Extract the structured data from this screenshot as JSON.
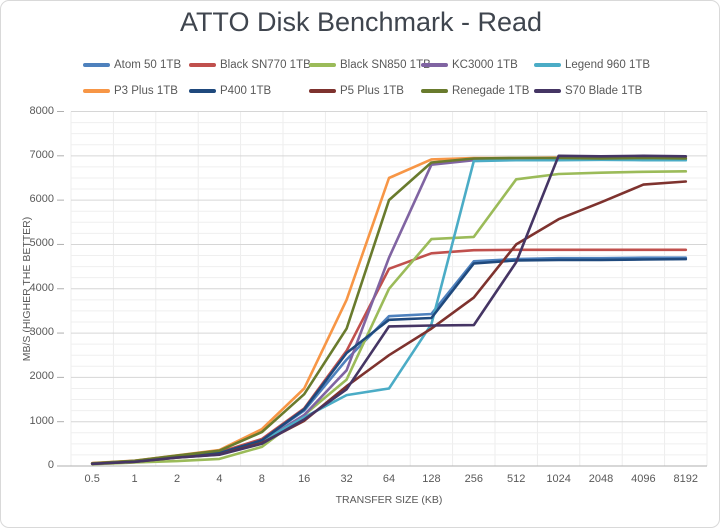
{
  "chart_data": {
    "type": "line",
    "title": "ATTO Disk Benchmark - Read",
    "xlabel": "TRANSFER SIZE (KB)",
    "ylabel": "MB/S (HIGHER THE BETTER)",
    "ylim": [
      0,
      8000
    ],
    "y_major_step": 1000,
    "y_minor_step": 250,
    "y_ticks": [
      "0",
      "1000",
      "2000",
      "3000",
      "4000",
      "5000",
      "6000",
      "7000",
      "8000"
    ],
    "grid": true,
    "legend_position": "top",
    "categories": [
      "0.5",
      "1",
      "2",
      "4",
      "8",
      "16",
      "32",
      "64",
      "128",
      "256",
      "512",
      "1024",
      "2048",
      "4096",
      "8192"
    ],
    "series": [
      {
        "name": "Atom 50 1TB",
        "color": "#4E81BD",
        "values": [
          60,
          115,
          230,
          300,
          590,
          1250,
          2400,
          3380,
          3430,
          4620,
          4670,
          4690,
          4690,
          4700,
          4700
        ]
      },
      {
        "name": "Black SN770 1TB",
        "color": "#C0504D",
        "values": [
          60,
          115,
          230,
          310,
          610,
          1300,
          2600,
          4450,
          4800,
          4870,
          4880,
          4880,
          4880,
          4880,
          4880
        ]
      },
      {
        "name": "Black SN850 1TB",
        "color": "#9BBB59",
        "values": [
          40,
          80,
          110,
          160,
          430,
          1150,
          1950,
          4000,
          5120,
          5170,
          6470,
          6590,
          6620,
          6640,
          6650
        ]
      },
      {
        "name": "KC3000 1TB",
        "color": "#8064A2",
        "values": [
          55,
          110,
          215,
          280,
          550,
          1150,
          2160,
          4700,
          6800,
          6900,
          6930,
          6930,
          6940,
          6930,
          6930
        ]
      },
      {
        "name": "Legend 960 1TB",
        "color": "#4BACC6",
        "values": [
          55,
          105,
          210,
          280,
          560,
          1100,
          1600,
          1750,
          3200,
          6880,
          6900,
          6900,
          6910,
          6900,
          6900
        ]
      },
      {
        "name": "P3 Plus 1TB",
        "color": "#F79646",
        "values": [
          65,
          120,
          240,
          360,
          830,
          1750,
          3750,
          6500,
          6920,
          6950,
          6950,
          6960,
          6960,
          6970,
          6960
        ]
      },
      {
        "name": "P400 1TB",
        "color": "#1F497D",
        "values": [
          55,
          110,
          220,
          290,
          580,
          1280,
          2550,
          3300,
          3340,
          4570,
          4640,
          4650,
          4650,
          4660,
          4670
        ]
      },
      {
        "name": "P5 Plus 1TB",
        "color": "#7E322E",
        "values": [
          50,
          95,
          190,
          260,
          520,
          1020,
          1800,
          2500,
          3100,
          3800,
          5000,
          5570,
          5950,
          6350,
          6420
        ]
      },
      {
        "name": "Renegade 1TB",
        "color": "#697B2D",
        "values": [
          60,
          118,
          235,
          345,
          765,
          1620,
          3100,
          6000,
          6850,
          6940,
          6950,
          6950,
          6940,
          6950,
          6940
        ]
      },
      {
        "name": "S70 Blade 1TB",
        "color": "#453564",
        "values": [
          50,
          95,
          190,
          255,
          500,
          1050,
          1730,
          3150,
          3170,
          3180,
          4600,
          7000,
          6990,
          7000,
          6990
        ]
      }
    ],
    "gridline_colors": {
      "major": "#D6D6D6",
      "minor": "#EFEFEF",
      "vertical": "#EDEDED",
      "axis": "#AFAFAF"
    }
  }
}
